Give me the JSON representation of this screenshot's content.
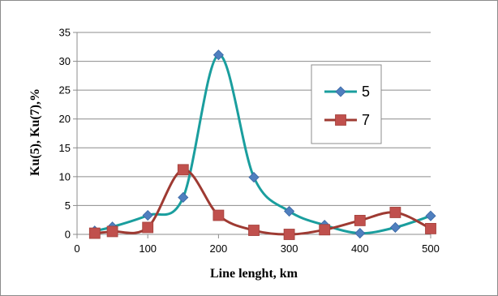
{
  "chart_data": {
    "type": "line",
    "xlabel": "Line lenght, km",
    "ylabel": "Ku(5), Ku(7),%",
    "xlim": [
      0,
      500
    ],
    "ylim": [
      0,
      35
    ],
    "x_ticks": [
      0,
      100,
      200,
      300,
      400,
      500
    ],
    "y_ticks": [
      0,
      5,
      10,
      15,
      20,
      25,
      30,
      35
    ],
    "grid": "horizontal",
    "legend_position": "right",
    "series": [
      {
        "name": "5",
        "color": "#1a9e9e",
        "marker": "diamond",
        "marker_color": "#4f7fbf",
        "x": [
          25,
          50,
          100,
          150,
          200,
          250,
          300,
          350,
          400,
          450,
          500
        ],
        "y": [
          0.6,
          1.3,
          3.3,
          6.4,
          31.1,
          9.9,
          4.0,
          1.6,
          0.2,
          1.2,
          3.2
        ]
      },
      {
        "name": "7",
        "color": "#9e3a32",
        "marker": "square",
        "marker_color": "#c0504d",
        "x": [
          25,
          50,
          100,
          150,
          200,
          250,
          300,
          350,
          400,
          450,
          500
        ],
        "y": [
          0.2,
          0.5,
          1.2,
          11.2,
          3.3,
          0.7,
          0.0,
          0.8,
          2.4,
          3.8,
          1.0
        ]
      }
    ]
  }
}
